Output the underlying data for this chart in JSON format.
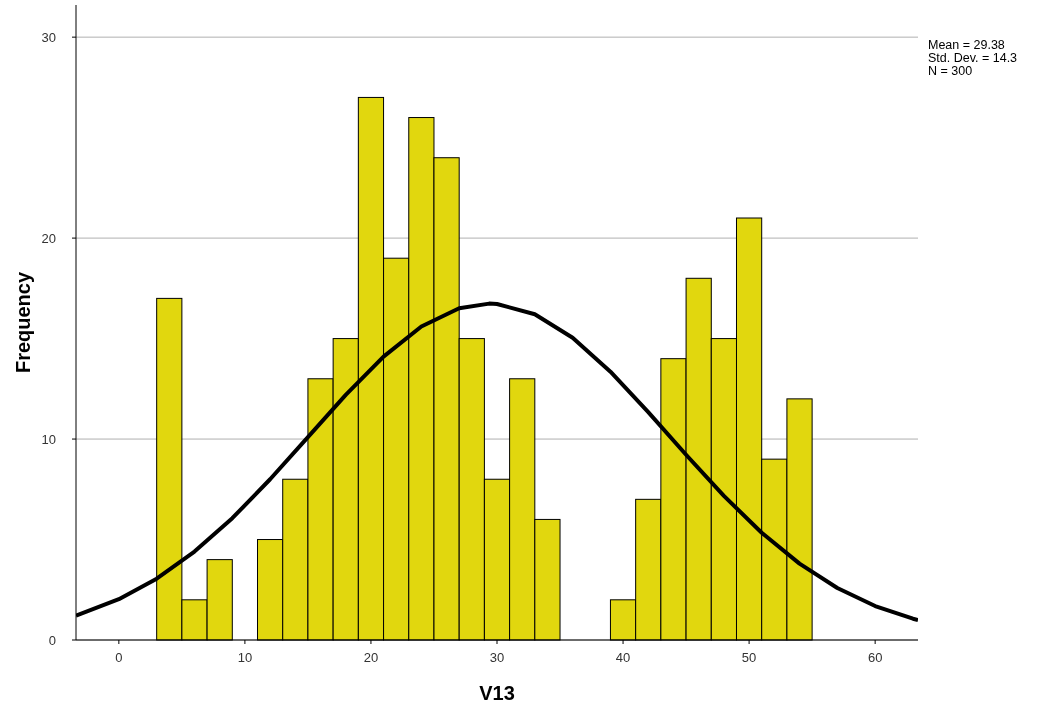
{
  "chart_data": {
    "type": "histogram",
    "xlabel": "V13",
    "ylabel": "Frequency",
    "color": "#e1d70e",
    "bins": [
      3,
      5,
      7,
      9,
      11,
      13,
      15,
      17,
      19,
      21,
      23,
      25,
      27,
      29,
      31,
      33,
      35,
      37,
      39,
      41,
      43,
      45,
      47,
      49,
      51,
      53,
      55
    ],
    "values": [
      17,
      2,
      4,
      0,
      5,
      8,
      13,
      15,
      27,
      19,
      26,
      24,
      15,
      8,
      13,
      6,
      0,
      0,
      2,
      7,
      14,
      18,
      15,
      21,
      9,
      12
    ],
    "series": [
      {
        "type": "line",
        "color": "#000000",
        "x": [
          -3.4,
          0,
          3,
          6,
          9,
          12,
          15,
          18,
          21,
          24,
          27,
          29.38,
          30,
          33,
          36,
          39,
          42,
          45,
          48,
          51,
          54,
          57,
          60,
          63,
          63.4
        ],
        "values": [
          1.21,
          2.03,
          3.05,
          4.4,
          6.06,
          8.0,
          10.1,
          12.2,
          14.1,
          15.6,
          16.51,
          16.74,
          16.72,
          16.21,
          15.04,
          13.35,
          11.34,
          9.22,
          7.17,
          5.34,
          3.8,
          2.59,
          1.69,
          1.06,
          0.99
        ]
      }
    ],
    "xlim": [
      -3.4,
      63.4
    ],
    "ylim": [
      0,
      31.6
    ],
    "xticks": [
      0,
      10,
      20,
      30,
      40,
      50,
      60
    ],
    "yticks": [
      0,
      10,
      20,
      30
    ],
    "grid": "y",
    "annotations": [
      "Mean = 29.38",
      "Std. Dev. = 14.3",
      "N = 300"
    ]
  }
}
